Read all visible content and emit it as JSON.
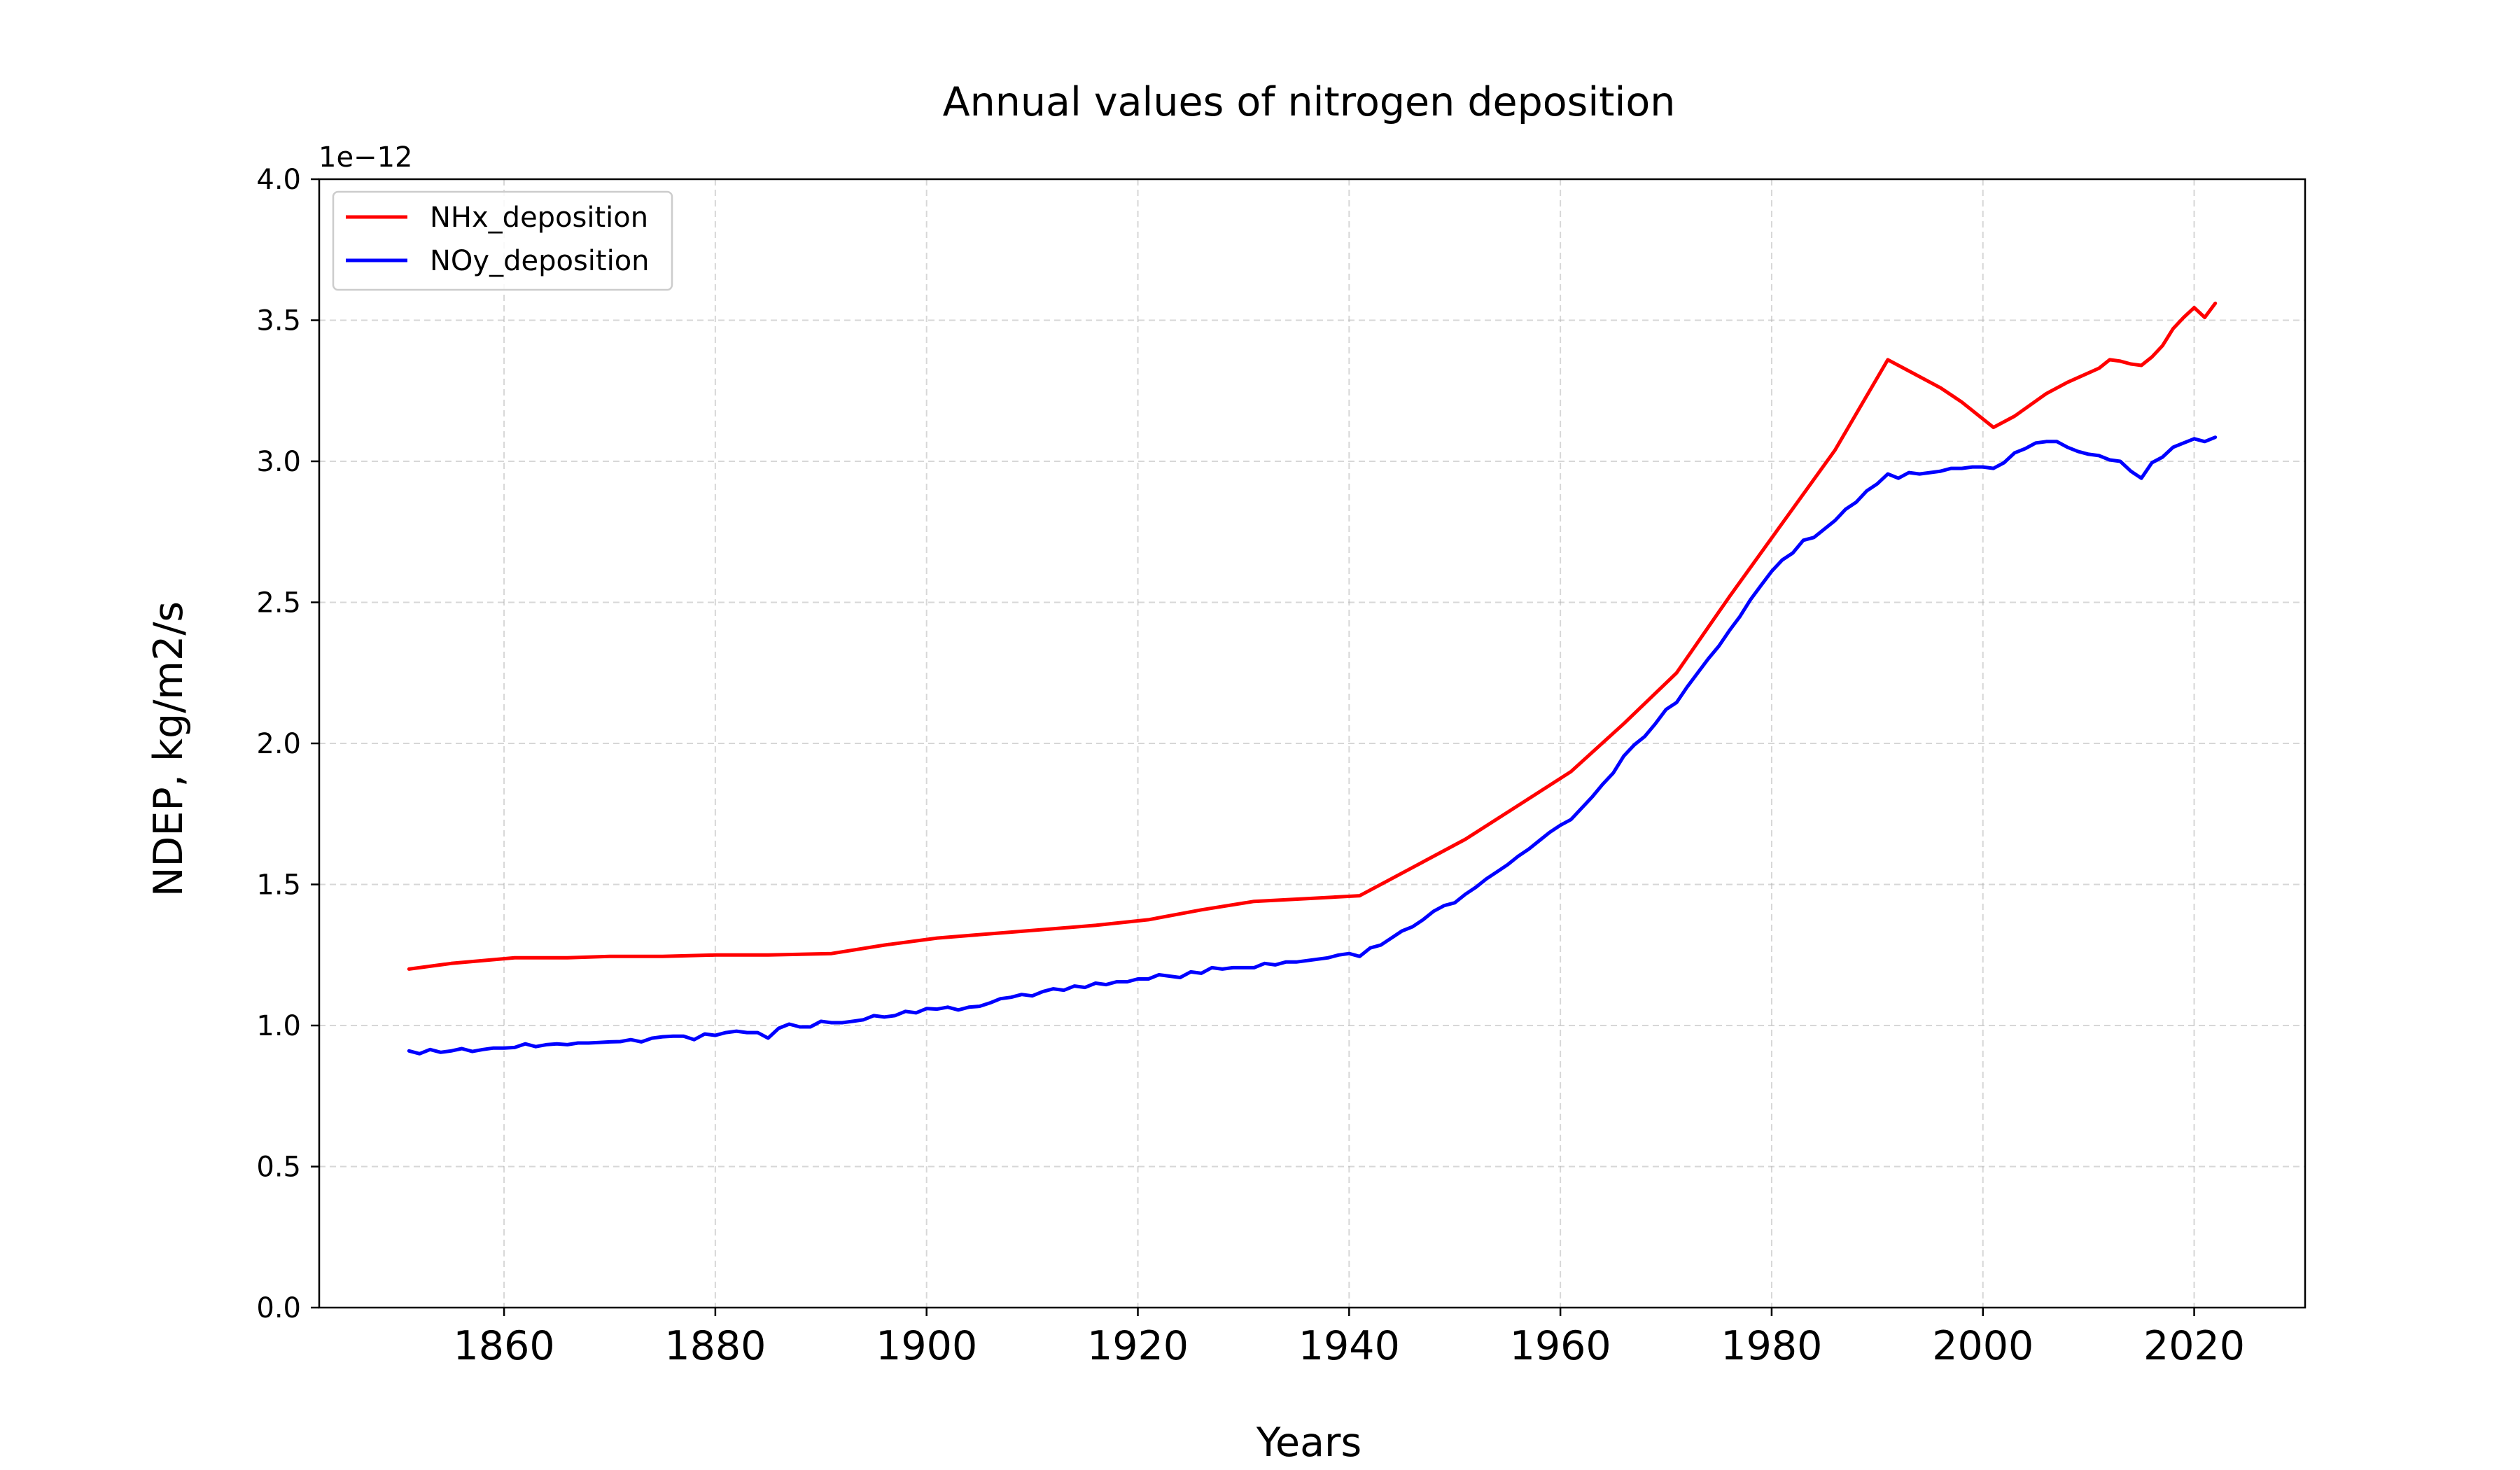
{
  "chart_data": {
    "type": "line",
    "title": "Annual values of nitrogen deposition",
    "xlabel": "Years",
    "ylabel": "NDEP, kg/m2/s",
    "y_offset_label": "1e−12",
    "xlim": [
      1842.5,
      2030.5
    ],
    "ylim": [
      0,
      4.0
    ],
    "x_ticks": [
      1860,
      1880,
      1900,
      1920,
      1940,
      1960,
      1980,
      2000,
      2020
    ],
    "x_tick_labels": [
      "1860",
      "1880",
      "1900",
      "1920",
      "1940",
      "1960",
      "1980",
      "2000",
      "2020"
    ],
    "y_ticks": [
      0.0,
      0.5,
      1.0,
      1.5,
      2.0,
      2.5,
      3.0,
      3.5,
      4.0
    ],
    "y_tick_labels": [
      "0.0",
      "0.5",
      "1.0",
      "1.5",
      "2.0",
      "2.5",
      "3.0",
      "3.5",
      "4.0"
    ],
    "grid": true,
    "legend_position": "upper left",
    "series": [
      {
        "name": "NHx_deposition",
        "color": "#ff0000",
        "x": [
          1851,
          1855,
          1858,
          1861,
          1866,
          1870,
          1875,
          1880,
          1885,
          1891,
          1896,
          1901,
          1906,
          1911,
          1916,
          1921,
          1926,
          1931,
          1936,
          1941,
          1946,
          1951,
          1956,
          1961,
          1966,
          1971,
          1976,
          1981,
          1986,
          1991,
          1993,
          1996,
          1998,
          2001,
          2003,
          2006,
          2008,
          2011,
          2012,
          2013,
          2014,
          2015,
          2016,
          2017,
          2018,
          2019,
          2020,
          2021,
          2022
        ],
        "y": [
          1.2,
          1.22,
          1.23,
          1.24,
          1.24,
          1.245,
          1.245,
          1.25,
          1.25,
          1.255,
          1.285,
          1.31,
          1.325,
          1.34,
          1.355,
          1.375,
          1.41,
          1.44,
          1.45,
          1.46,
          1.56,
          1.66,
          1.78,
          1.9,
          2.07,
          2.25,
          2.52,
          2.78,
          3.04,
          3.36,
          3.32,
          3.26,
          3.21,
          3.12,
          3.16,
          3.24,
          3.28,
          3.33,
          3.36,
          3.355,
          3.345,
          3.34,
          3.37,
          3.41,
          3.47,
          3.51,
          3.545,
          3.51,
          3.56
        ]
      },
      {
        "name": "NOy_deposition",
        "color": "#0000ff",
        "x": [
          1851,
          1852,
          1853,
          1854,
          1855,
          1856,
          1857,
          1858,
          1859,
          1860,
          1861,
          1862,
          1863,
          1864,
          1865,
          1866,
          1867,
          1868,
          1869,
          1870,
          1871,
          1872,
          1873,
          1874,
          1875,
          1876,
          1877,
          1878,
          1879,
          1880,
          1881,
          1882,
          1883,
          1884,
          1885,
          1886,
          1887,
          1888,
          1889,
          1890,
          1891,
          1892,
          1893,
          1894,
          1895,
          1896,
          1897,
          1898,
          1899,
          1900,
          1901,
          1902,
          1903,
          1904,
          1905,
          1906,
          1907,
          1908,
          1909,
          1910,
          1911,
          1912,
          1913,
          1914,
          1915,
          1916,
          1917,
          1918,
          1919,
          1920,
          1921,
          1922,
          1923,
          1924,
          1925,
          1926,
          1927,
          1928,
          1929,
          1930,
          1931,
          1932,
          1933,
          1934,
          1935,
          1936,
          1937,
          1938,
          1939,
          1940,
          1941,
          1942,
          1943,
          1944,
          1945,
          1946,
          1947,
          1948,
          1949,
          1950,
          1951,
          1952,
          1953,
          1954,
          1955,
          1956,
          1957,
          1958,
          1959,
          1960,
          1961,
          1962,
          1963,
          1964,
          1965,
          1966,
          1967,
          1968,
          1969,
          1970,
          1971,
          1972,
          1973,
          1974,
          1975,
          1976,
          1977,
          1978,
          1979,
          1980,
          1981,
          1982,
          1983,
          1984,
          1985,
          1986,
          1987,
          1988,
          1989,
          1990,
          1991,
          1992,
          1993,
          1994,
          1995,
          1996,
          1997,
          1998,
          1999,
          2000,
          2001,
          2002,
          2003,
          2004,
          2005,
          2006,
          2007,
          2008,
          2009,
          2010,
          2011,
          2012,
          2013,
          2014,
          2015,
          2016,
          2017,
          2018,
          2019,
          2020,
          2021,
          2022
        ],
        "y": [
          0.91,
          0.9,
          0.915,
          0.905,
          0.91,
          0.918,
          0.908,
          0.915,
          0.92,
          0.92,
          0.922,
          0.935,
          0.925,
          0.932,
          0.935,
          0.932,
          0.938,
          0.938,
          0.94,
          0.942,
          0.943,
          0.95,
          0.942,
          0.955,
          0.96,
          0.962,
          0.962,
          0.95,
          0.97,
          0.965,
          0.975,
          0.98,
          0.975,
          0.975,
          0.955,
          0.99,
          1.005,
          0.995,
          0.995,
          1.015,
          1.01,
          1.01,
          1.015,
          1.02,
          1.035,
          1.03,
          1.035,
          1.05,
          1.045,
          1.06,
          1.058,
          1.065,
          1.055,
          1.065,
          1.068,
          1.08,
          1.095,
          1.1,
          1.11,
          1.105,
          1.12,
          1.13,
          1.125,
          1.14,
          1.135,
          1.15,
          1.145,
          1.155,
          1.155,
          1.165,
          1.165,
          1.18,
          1.175,
          1.17,
          1.19,
          1.185,
          1.205,
          1.2,
          1.205,
          1.205,
          1.205,
          1.22,
          1.215,
          1.225,
          1.225,
          1.23,
          1.235,
          1.24,
          1.25,
          1.255,
          1.245,
          1.275,
          1.285,
          1.31,
          1.335,
          1.35,
          1.375,
          1.405,
          1.425,
          1.435,
          1.465,
          1.49,
          1.52,
          1.545,
          1.57,
          1.6,
          1.625,
          1.655,
          1.685,
          1.71,
          1.73,
          1.77,
          1.81,
          1.855,
          1.895,
          1.955,
          1.995,
          2.025,
          2.07,
          2.12,
          2.145,
          2.2,
          2.25,
          2.3,
          2.345,
          2.4,
          2.45,
          2.51,
          2.56,
          2.61,
          2.65,
          2.675,
          2.72,
          2.73,
          2.76,
          2.79,
          2.83,
          2.855,
          2.895,
          2.92,
          2.955,
          2.94,
          2.96,
          2.955,
          2.96,
          2.965,
          2.975,
          2.975,
          2.98,
          2.98,
          2.975,
          2.995,
          3.03,
          3.045,
          3.065,
          3.07,
          3.07,
          3.05,
          3.035,
          3.025,
          3.02,
          3.005,
          3.0,
          2.965,
          2.94,
          2.995,
          3.015,
          3.05,
          3.065,
          3.08,
          3.07,
          3.085
        ]
      }
    ]
  }
}
